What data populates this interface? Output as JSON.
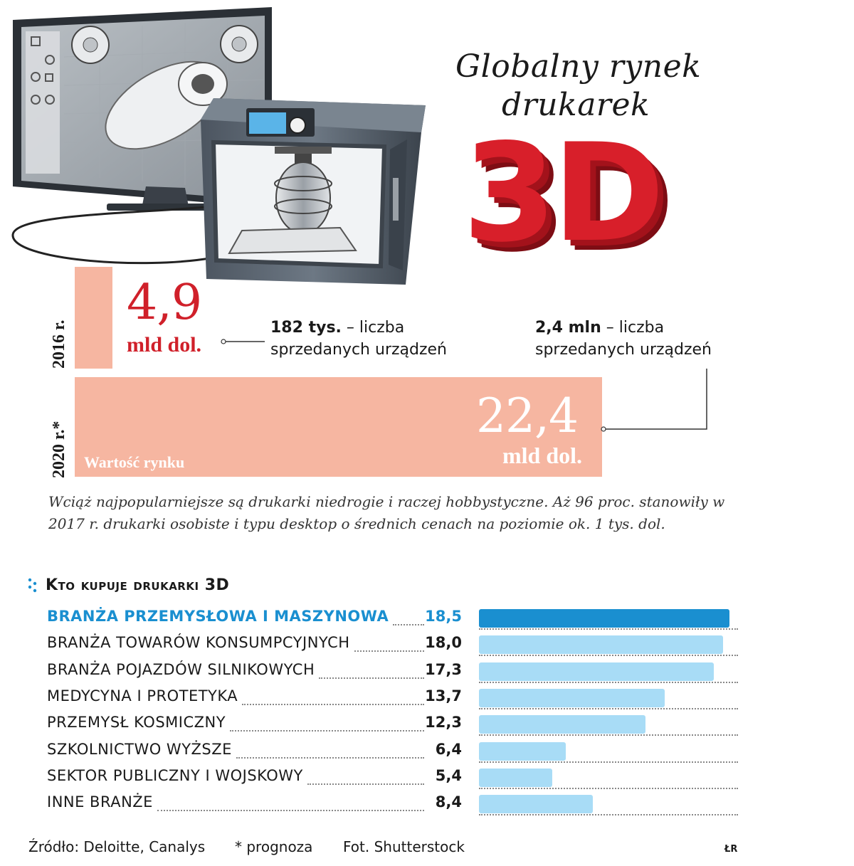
{
  "title": {
    "line1": "Globalny rynek",
    "line2": "drukarek",
    "big": "3D"
  },
  "colors": {
    "accent_red": "#d0202a",
    "salmon": "#f6b6a1",
    "bar_highlight": "#1a8fd0",
    "bar_normal": "#a8dcf6"
  },
  "market": {
    "label": "Wartość rynku",
    "y2016": {
      "year": "2016 r.",
      "value": "4,9",
      "unit": "mld dol.",
      "units_bold": "182 tys.",
      "units_text": " – liczba",
      "units_text2": "sprzedanych urządzeń"
    },
    "y2020": {
      "year": "2020 r.*",
      "value": "22,4",
      "unit": "mld dol.",
      "units_bold": "2,4 mln",
      "units_text": " – liczba",
      "units_text2": "sprzedanych urządzeń"
    }
  },
  "caption": "Wciąż najpopularniejsze są drukarki niedrogie i raczej hobbystyczne. Aż 96 proc. stanowiły w 2017 r. drukarki osobiste i typu desktop o średnich cenach na poziomie ok. 1 tys. dol.",
  "buyers_title": "Kto kupuje drukarki 3D",
  "chart_data": [
    {
      "type": "bar",
      "categories": [
        "2016 r.",
        "2020 r.*"
      ],
      "values": [
        4.9,
        22.4
      ],
      "ylabel": "mld dol.",
      "series": [
        {
          "name": "Wartość rynku",
          "values": [
            4.9,
            22.4
          ]
        }
      ],
      "units_sold": [
        "182 tys.",
        "2,4 mln"
      ]
    },
    {
      "type": "bar",
      "title": "Kto kupuje drukarki 3D",
      "categories": [
        "BRANŻA PRZEMYSŁOWA I MASZYNOWA",
        "BRANŻA TOWARÓW KONSUMPCYJNYCH",
        "BRANŻA POJAZDÓW SILNIKOWYCH",
        "MEDYCYNA I PROTETYKA",
        "PRZEMYSŁ KOSMICZNY",
        "SZKOLNICTWO WYŻSZE",
        "SEKTOR PUBLICZNY I WOJSKOWY",
        "INNE BRANŻE"
      ],
      "values": [
        18.5,
        18.0,
        17.3,
        13.7,
        12.3,
        6.4,
        5.4,
        8.4
      ],
      "labels": [
        "18,5",
        "18,0",
        "17,3",
        "13,7",
        "12,3",
        "6,4",
        "5,4",
        "8,4"
      ],
      "highlight_index": 0,
      "xlim": [
        0,
        19
      ]
    }
  ],
  "footer": {
    "source": "Źródło: Deloitte, Canalys",
    "forecast": "* prognoza",
    "photo": "Fot. Shutterstock",
    "author": "ŁR"
  }
}
